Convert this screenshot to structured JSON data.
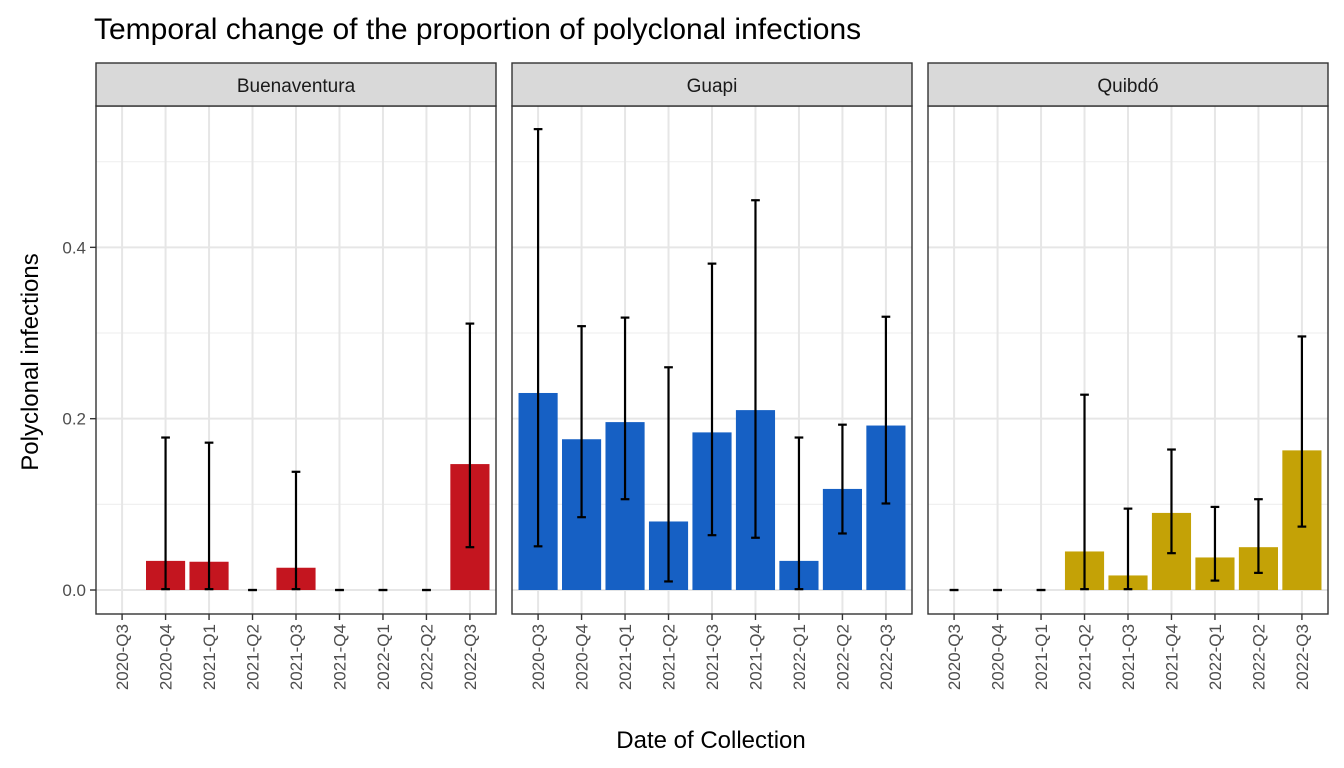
{
  "chart_data": {
    "type": "bar",
    "title": "Temporal change of the proportion of polyclonal infections",
    "xlabel": "Date of Collection",
    "ylabel": "Polyclonal infections",
    "categories": [
      "2020-Q3",
      "2020-Q4",
      "2021-Q1",
      "2021-Q2",
      "2021-Q3",
      "2021-Q4",
      "2022-Q1",
      "2022-Q2",
      "2022-Q3"
    ],
    "ylim": [
      -0.028,
      0.565
    ],
    "yticks": [
      0.0,
      0.2,
      0.4
    ],
    "ytick_labels": [
      "0.0",
      "0.2",
      "0.4"
    ],
    "grid": true,
    "error_bars": true,
    "facets": [
      {
        "name": "Buenaventura",
        "color": "#C4151F",
        "values": [
          null,
          0.034,
          0.033,
          0.0,
          0.026,
          0.0,
          0.0,
          0.0,
          0.147
        ],
        "ci_low": [
          null,
          0.001,
          0.001,
          0.0,
          0.001,
          0.0,
          0.0,
          0.0,
          0.05
        ],
        "ci_high": [
          null,
          0.178,
          0.172,
          0.0,
          0.138,
          0.0,
          0.0,
          0.0,
          0.311
        ]
      },
      {
        "name": "Guapi",
        "color": "#1660C4",
        "values": [
          0.23,
          0.176,
          0.196,
          0.08,
          0.184,
          0.21,
          0.034,
          0.118,
          0.192
        ],
        "ci_low": [
          0.051,
          0.085,
          0.106,
          0.01,
          0.064,
          0.061,
          0.001,
          0.066,
          0.101
        ],
        "ci_high": [
          0.538,
          0.308,
          0.318,
          0.26,
          0.381,
          0.455,
          0.178,
          0.193,
          0.319
        ]
      },
      {
        "name": "Quibdó",
        "color": "#C4A206",
        "values": [
          0.0,
          0.0,
          0.0,
          0.045,
          0.017,
          0.09,
          0.038,
          0.05,
          0.163
        ],
        "ci_low": [
          0.0,
          0.0,
          0.0,
          0.001,
          0.001,
          0.043,
          0.011,
          0.02,
          0.074
        ],
        "ci_high": [
          0.0,
          0.0,
          0.0,
          0.228,
          0.095,
          0.164,
          0.097,
          0.106,
          0.296
        ]
      }
    ]
  }
}
